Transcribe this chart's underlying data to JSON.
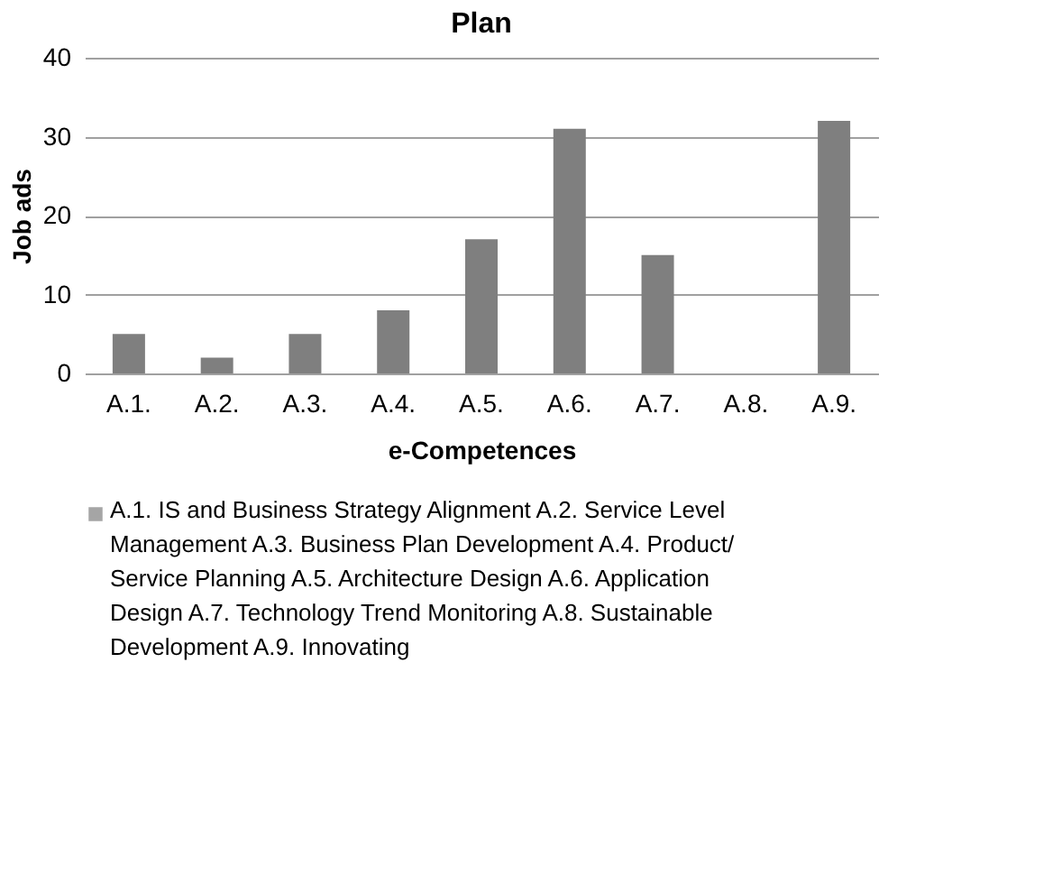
{
  "chart_data": {
    "type": "bar",
    "title": "Plan",
    "xlabel": "e-Competences",
    "ylabel": "Job ads",
    "categories": [
      "A.1.",
      "A.2.",
      "A.3.",
      "A.4.",
      "A.5.",
      "A.6.",
      "A.7.",
      "A.8.",
      "A.9."
    ],
    "series": [
      {
        "name": "A.1. IS and Business Strategy Alignment  A.2. Service Level Management  A.3. Business Plan Development  A.4. Product/ Service Planning  A.5. Architecture Design  A.6. Application Design  A.7. Technology Trend Monitoring  A.8. Sustainable Development  A.9. Innovating",
        "color": "#7f7f7f",
        "values": [
          5,
          2,
          5,
          8,
          17,
          31,
          15,
          0,
          32
        ]
      }
    ],
    "ylim": [
      0,
      40
    ],
    "yticks": [
      0,
      10,
      20,
      30,
      40
    ],
    "grid": "y",
    "legend": "bottom"
  }
}
